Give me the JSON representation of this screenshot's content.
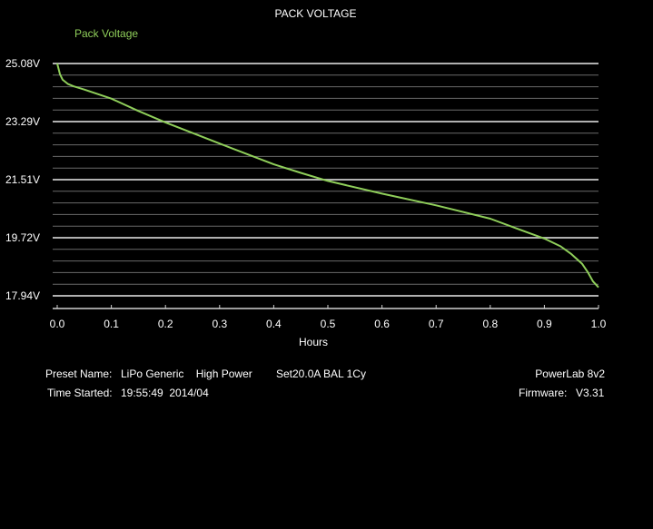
{
  "chart_data": {
    "type": "line",
    "title": "PACK VOLTAGE",
    "xlabel": "Hours",
    "ylabel": "",
    "xlim": [
      0,
      1.0
    ],
    "ylim": [
      17.94,
      25.08
    ],
    "x_ticks": [
      "0.0",
      "0.1",
      "0.2",
      "0.3",
      "0.4",
      "0.5",
      "0.6",
      "0.7",
      "0.8",
      "0.9",
      "1.0"
    ],
    "y_ticks": [
      "25.08V",
      "23.29V",
      "21.51V",
      "19.72V",
      "17.94V"
    ],
    "y_tick_values": [
      25.08,
      23.29,
      21.51,
      19.72,
      17.94
    ],
    "grid": true,
    "line_color": "#8fce5a",
    "series": [
      {
        "name": "Pack Voltage",
        "x": [
          0.0,
          0.005,
          0.01,
          0.02,
          0.03,
          0.05,
          0.1,
          0.15,
          0.2,
          0.3,
          0.4,
          0.45,
          0.5,
          0.6,
          0.7,
          0.8,
          0.85,
          0.9,
          0.93,
          0.95,
          0.97,
          0.98,
          0.99,
          1.0
        ],
        "y": [
          25.08,
          24.75,
          24.58,
          24.45,
          24.38,
          24.28,
          24.0,
          23.62,
          23.27,
          22.62,
          21.98,
          21.72,
          21.47,
          21.08,
          20.72,
          20.31,
          20.0,
          19.7,
          19.46,
          19.22,
          18.92,
          18.67,
          18.38,
          18.2
        ]
      }
    ]
  },
  "info": {
    "preset_label": "Preset Name:",
    "preset_value": "LiPo Generic    High Power",
    "settings": "Set20.0A BAL 1Cy",
    "time_label": "Time Started:",
    "time_value": "19:55:49  2014/04",
    "device": "PowerLab 8v2",
    "firmware_label": "Firmware:",
    "firmware_value": "V3.31"
  }
}
